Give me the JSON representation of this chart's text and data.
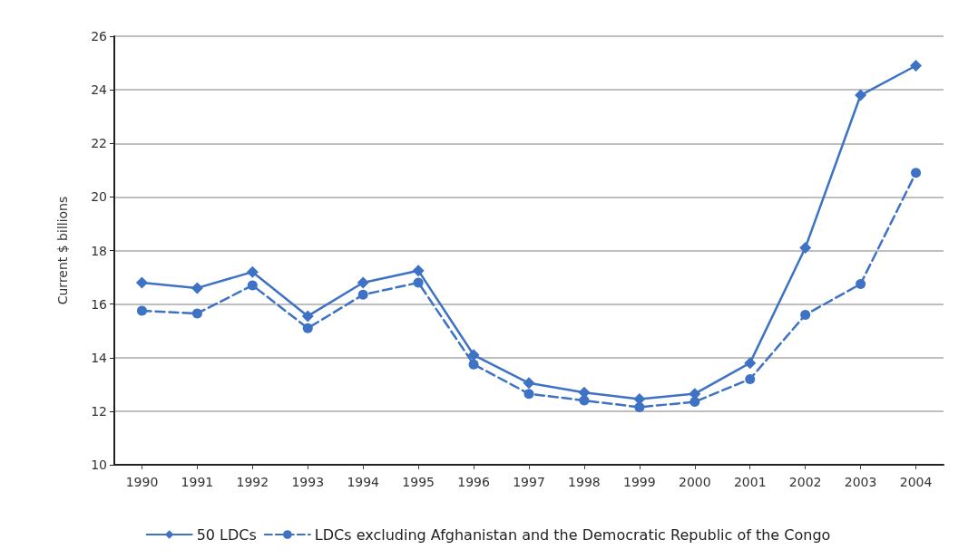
{
  "chart_data": {
    "type": "line",
    "ylabel": "Current $ billions",
    "categories": [
      "1990",
      "1991",
      "1992",
      "1993",
      "1994",
      "1995",
      "1996",
      "1997",
      "1998",
      "1999",
      "2000",
      "2001",
      "2002",
      "2003",
      "2004"
    ],
    "series": [
      {
        "name": "50 LDCs",
        "color": "#3d72c4",
        "marker": "diamond",
        "line_style": "solid",
        "values": [
          16.8,
          16.6,
          17.2,
          15.55,
          16.8,
          17.25,
          14.1,
          13.05,
          12.7,
          12.45,
          12.65,
          13.8,
          18.1,
          23.8,
          24.9
        ]
      },
      {
        "name": "LDCs excluding Afghanistan and the Democratic Republic of the Congo",
        "color": "#3d72c4",
        "marker": "circle",
        "line_style": "dashed",
        "values": [
          15.75,
          15.65,
          16.7,
          15.1,
          16.35,
          16.8,
          13.75,
          12.65,
          12.4,
          12.15,
          12.35,
          13.2,
          15.6,
          16.75,
          20.9
        ]
      }
    ],
    "ylim": [
      10,
      26
    ],
    "yticks": [
      10,
      12,
      14,
      16,
      18,
      20,
      22,
      24,
      26
    ],
    "grid": "y",
    "legend": "bottom"
  }
}
